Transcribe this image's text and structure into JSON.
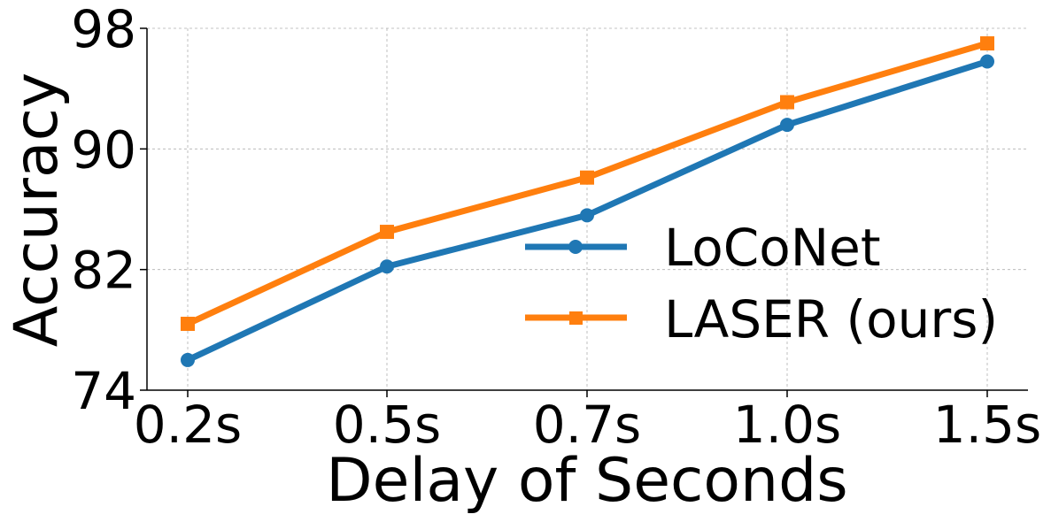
{
  "chart_data": {
    "type": "line",
    "title": "",
    "xlabel": "Delay of Seconds",
    "ylabel": "Accuracy",
    "categories": [
      "0.2s",
      "0.5s",
      "0.7s",
      "1.0s",
      "1.5s"
    ],
    "yticks": [
      "74",
      "82",
      "90",
      "98"
    ],
    "ylim": [
      74,
      98
    ],
    "grid": true,
    "legend_position": "lower-right",
    "series": [
      {
        "name": "LoConet",
        "display_name": "LoCoNet",
        "marker": "circle",
        "color": "#1f77b4",
        "values": [
          76.0,
          82.2,
          85.6,
          91.6,
          95.8
        ]
      },
      {
        "name": "LASER",
        "display_name": "LASER (ours)",
        "marker": "square",
        "color": "#ff7f0e",
        "values": [
          78.4,
          84.5,
          88.1,
          93.1,
          97.0
        ]
      }
    ]
  }
}
